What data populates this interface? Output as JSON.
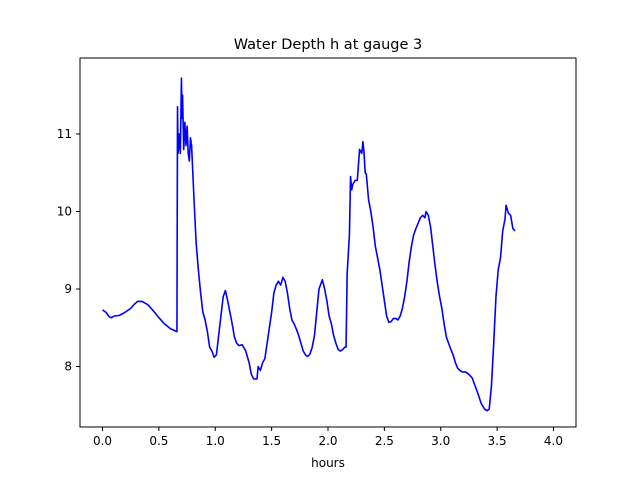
{
  "chart_data": {
    "type": "line",
    "title": "Water Depth h at gauge 3",
    "xlabel": "hours",
    "ylabel": "",
    "xlim": [
      -0.2,
      4.2
    ],
    "ylim": [
      7.22,
      11.98
    ],
    "x_ticks": [
      0.0,
      0.5,
      1.0,
      1.5,
      2.0,
      2.5,
      3.0,
      3.5,
      4.0
    ],
    "x_tick_labels": [
      "0.0",
      "0.5",
      "1.0",
      "1.5",
      "2.0",
      "2.5",
      "3.0",
      "3.5",
      "4.0"
    ],
    "y_ticks": [
      8,
      9,
      10,
      11
    ],
    "y_tick_labels": [
      "8",
      "9",
      "10",
      "11"
    ],
    "grid": false,
    "colors": {
      "line": "#0000ff",
      "axes": "#000000",
      "background": "#ffffff"
    },
    "series": [
      {
        "name": "",
        "points": [
          [
            0.0,
            8.73
          ],
          [
            0.03,
            8.7
          ],
          [
            0.06,
            8.64
          ],
          [
            0.08,
            8.63
          ],
          [
            0.1,
            8.65
          ],
          [
            0.15,
            8.66
          ],
          [
            0.2,
            8.7
          ],
          [
            0.25,
            8.75
          ],
          [
            0.28,
            8.8
          ],
          [
            0.31,
            8.84
          ],
          [
            0.35,
            8.84
          ],
          [
            0.4,
            8.8
          ],
          [
            0.45,
            8.72
          ],
          [
            0.5,
            8.63
          ],
          [
            0.55,
            8.55
          ],
          [
            0.6,
            8.49
          ],
          [
            0.63,
            8.47
          ],
          [
            0.66,
            8.45
          ],
          [
            0.665,
            11.35
          ],
          [
            0.67,
            10.75
          ],
          [
            0.68,
            11.0
          ],
          [
            0.69,
            10.75
          ],
          [
            0.7,
            11.72
          ],
          [
            0.705,
            11.2
          ],
          [
            0.71,
            11.5
          ],
          [
            0.72,
            10.8
          ],
          [
            0.73,
            11.15
          ],
          [
            0.74,
            10.85
          ],
          [
            0.75,
            11.1
          ],
          [
            0.76,
            10.75
          ],
          [
            0.77,
            10.65
          ],
          [
            0.78,
            10.95
          ],
          [
            0.79,
            10.85
          ],
          [
            0.81,
            10.2
          ],
          [
            0.83,
            9.6
          ],
          [
            0.85,
            9.25
          ],
          [
            0.87,
            8.95
          ],
          [
            0.89,
            8.7
          ],
          [
            0.91,
            8.6
          ],
          [
            0.93,
            8.45
          ],
          [
            0.95,
            8.25
          ],
          [
            0.97,
            8.2
          ],
          [
            0.99,
            8.12
          ],
          [
            1.01,
            8.15
          ],
          [
            1.03,
            8.4
          ],
          [
            1.05,
            8.65
          ],
          [
            1.07,
            8.9
          ],
          [
            1.09,
            8.98
          ],
          [
            1.11,
            8.85
          ],
          [
            1.13,
            8.7
          ],
          [
            1.15,
            8.55
          ],
          [
            1.17,
            8.38
          ],
          [
            1.19,
            8.3
          ],
          [
            1.21,
            8.27
          ],
          [
            1.24,
            8.28
          ],
          [
            1.27,
            8.2
          ],
          [
            1.3,
            8.05
          ],
          [
            1.32,
            7.9
          ],
          [
            1.34,
            7.84
          ],
          [
            1.37,
            7.84
          ],
          [
            1.38,
            8.0
          ],
          [
            1.4,
            7.95
          ],
          [
            1.42,
            8.05
          ],
          [
            1.44,
            8.1
          ],
          [
            1.46,
            8.3
          ],
          [
            1.48,
            8.5
          ],
          [
            1.5,
            8.7
          ],
          [
            1.52,
            8.95
          ],
          [
            1.54,
            9.05
          ],
          [
            1.56,
            9.1
          ],
          [
            1.58,
            9.05
          ],
          [
            1.6,
            9.15
          ],
          [
            1.62,
            9.1
          ],
          [
            1.64,
            8.95
          ],
          [
            1.66,
            8.75
          ],
          [
            1.68,
            8.6
          ],
          [
            1.7,
            8.55
          ],
          [
            1.72,
            8.48
          ],
          [
            1.74,
            8.4
          ],
          [
            1.76,
            8.3
          ],
          [
            1.78,
            8.2
          ],
          [
            1.8,
            8.15
          ],
          [
            1.82,
            8.13
          ],
          [
            1.84,
            8.16
          ],
          [
            1.86,
            8.25
          ],
          [
            1.88,
            8.4
          ],
          [
            1.9,
            8.7
          ],
          [
            1.92,
            9.0
          ],
          [
            1.94,
            9.08
          ],
          [
            1.95,
            9.12
          ],
          [
            1.97,
            9.0
          ],
          [
            1.99,
            8.85
          ],
          [
            2.01,
            8.65
          ],
          [
            2.03,
            8.55
          ],
          [
            2.05,
            8.4
          ],
          [
            2.07,
            8.3
          ],
          [
            2.09,
            8.22
          ],
          [
            2.11,
            8.2
          ],
          [
            2.13,
            8.22
          ],
          [
            2.15,
            8.25
          ],
          [
            2.16,
            8.25
          ],
          [
            2.17,
            9.2
          ],
          [
            2.19,
            9.7
          ],
          [
            2.2,
            10.45
          ],
          [
            2.21,
            10.28
          ],
          [
            2.22,
            10.35
          ],
          [
            2.24,
            10.4
          ],
          [
            2.26,
            10.4
          ],
          [
            2.28,
            10.8
          ],
          [
            2.3,
            10.75
          ],
          [
            2.31,
            10.9
          ],
          [
            2.32,
            10.75
          ],
          [
            2.33,
            10.5
          ],
          [
            2.34,
            10.48
          ],
          [
            2.36,
            10.15
          ],
          [
            2.38,
            10.0
          ],
          [
            2.4,
            9.8
          ],
          [
            2.42,
            9.55
          ],
          [
            2.44,
            9.4
          ],
          [
            2.46,
            9.25
          ],
          [
            2.48,
            9.05
          ],
          [
            2.5,
            8.85
          ],
          [
            2.52,
            8.65
          ],
          [
            2.54,
            8.57
          ],
          [
            2.56,
            8.58
          ],
          [
            2.58,
            8.62
          ],
          [
            2.6,
            8.62
          ],
          [
            2.62,
            8.6
          ],
          [
            2.64,
            8.65
          ],
          [
            2.66,
            8.75
          ],
          [
            2.68,
            8.9
          ],
          [
            2.7,
            9.1
          ],
          [
            2.72,
            9.35
          ],
          [
            2.74,
            9.55
          ],
          [
            2.76,
            9.7
          ],
          [
            2.78,
            9.78
          ],
          [
            2.8,
            9.85
          ],
          [
            2.82,
            9.92
          ],
          [
            2.84,
            9.95
          ],
          [
            2.86,
            9.92
          ],
          [
            2.87,
            10.0
          ],
          [
            2.89,
            9.95
          ],
          [
            2.91,
            9.8
          ],
          [
            2.93,
            9.55
          ],
          [
            2.95,
            9.3
          ],
          [
            2.97,
            9.08
          ],
          [
            2.99,
            8.9
          ],
          [
            3.01,
            8.75
          ],
          [
            3.03,
            8.55
          ],
          [
            3.05,
            8.38
          ],
          [
            3.07,
            8.3
          ],
          [
            3.09,
            8.22
          ],
          [
            3.11,
            8.15
          ],
          [
            3.13,
            8.05
          ],
          [
            3.15,
            7.98
          ],
          [
            3.17,
            7.95
          ],
          [
            3.19,
            7.93
          ],
          [
            3.22,
            7.93
          ],
          [
            3.25,
            7.9
          ],
          [
            3.28,
            7.85
          ],
          [
            3.3,
            7.77
          ],
          [
            3.33,
            7.65
          ],
          [
            3.36,
            7.52
          ],
          [
            3.39,
            7.45
          ],
          [
            3.41,
            7.43
          ],
          [
            3.43,
            7.45
          ],
          [
            3.45,
            7.75
          ],
          [
            3.47,
            8.3
          ],
          [
            3.49,
            8.9
          ],
          [
            3.51,
            9.25
          ],
          [
            3.53,
            9.4
          ],
          [
            3.55,
            9.75
          ],
          [
            3.57,
            9.9
          ],
          [
            3.58,
            10.08
          ],
          [
            3.6,
            9.98
          ],
          [
            3.62,
            9.95
          ],
          [
            3.64,
            9.78
          ],
          [
            3.66,
            9.75
          ]
        ]
      }
    ]
  }
}
